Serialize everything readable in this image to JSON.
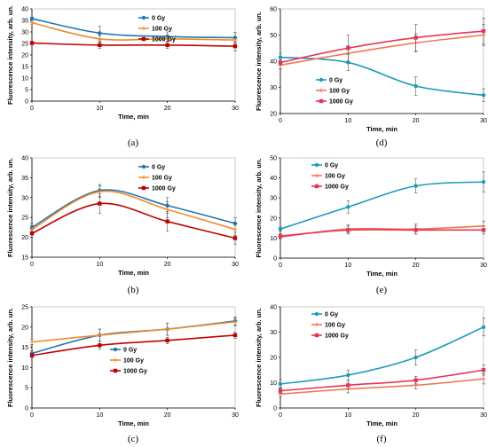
{
  "chart_data": [
    {
      "type": "line",
      "panel_label": "(a)",
      "x": [
        0,
        10,
        20,
        30
      ],
      "xlim": [
        0,
        30
      ],
      "xticks": [
        0,
        10,
        20,
        30
      ],
      "ylim": [
        0,
        40
      ],
      "yticks": [
        0,
        5,
        10,
        15,
        20,
        25,
        30,
        35,
        40
      ],
      "xlabel": "Time, min",
      "ylabel": "Fluorescence intensity, arb. un.",
      "legend_position": "top-right",
      "grid": false,
      "series": [
        {
          "name": "0 Gy",
          "color": "#1f77b4",
          "values": [
            35.8,
            29.5,
            28.0,
            27.5
          ],
          "errors": [
            0.6,
            3.0,
            2.0,
            2.3
          ]
        },
        {
          "name": "100 Gy",
          "color": "#f28c28",
          "values": [
            34.0,
            27.0,
            27.0,
            26.5
          ],
          "errors": [
            0.6,
            1.5,
            1.2,
            1.2
          ]
        },
        {
          "name": "1000 Gy",
          "color": "#c00000",
          "values": [
            25.2,
            24.3,
            24.3,
            23.8
          ],
          "errors": [
            0.4,
            1.5,
            1.5,
            2.0
          ]
        }
      ]
    },
    {
      "type": "line",
      "panel_label": "(d)",
      "x": [
        0,
        10,
        20,
        30
      ],
      "xlim": [
        0,
        30
      ],
      "xticks": [
        0,
        10,
        20,
        30
      ],
      "ylim": [
        20,
        60
      ],
      "yticks": [
        20,
        30,
        40,
        50,
        60
      ],
      "xlabel": "Time, min",
      "ylabel": "Fluorescence intensity, arb. un.",
      "legend_position": "bottom-left",
      "grid": false,
      "series": [
        {
          "name": "0 Gy",
          "color": "#1a9bb8",
          "values": [
            41.5,
            39.5,
            30.5,
            27.0
          ],
          "errors": [
            1.5,
            3.0,
            3.5,
            2.5
          ]
        },
        {
          "name": "100 Gy",
          "color": "#f07850",
          "values": [
            38.5,
            43.0,
            47.0,
            50.0
          ],
          "errors": [
            1.5,
            3.0,
            3.5,
            4.0
          ]
        },
        {
          "name": "1000 Gy",
          "color": "#e8325a",
          "values": [
            39.5,
            45.0,
            49.0,
            51.5
          ],
          "errors": [
            1.0,
            5.0,
            5.0,
            5.0
          ]
        }
      ]
    },
    {
      "type": "line",
      "panel_label": "(b)",
      "x": [
        0,
        10,
        20,
        30
      ],
      "xlim": [
        0,
        30
      ],
      "xticks": [
        0,
        10,
        20,
        30
      ],
      "ylim": [
        15,
        40
      ],
      "yticks": [
        15,
        20,
        25,
        30,
        35,
        40
      ],
      "xlabel": "Time, min",
      "ylabel": "Fluorescence intensity, arb. un.",
      "legend_position": "top-right",
      "grid": false,
      "series": [
        {
          "name": "0 Gy",
          "color": "#1f77b4",
          "values": [
            22.5,
            31.8,
            28.0,
            23.5
          ],
          "errors": [
            1.0,
            1.5,
            2.0,
            1.5
          ]
        },
        {
          "name": "100 Gy",
          "color": "#f28c28",
          "values": [
            22.0,
            31.5,
            27.0,
            22.0
          ],
          "errors": [
            1.0,
            1.5,
            2.0,
            1.5
          ]
        },
        {
          "name": "1000 Gy",
          "color": "#c00000",
          "values": [
            21.0,
            28.5,
            24.0,
            19.8
          ],
          "errors": [
            1.0,
            2.5,
            2.5,
            1.5
          ]
        }
      ]
    },
    {
      "type": "line",
      "panel_label": "(e)",
      "x": [
        0,
        10,
        20,
        30
      ],
      "xlim": [
        0,
        30
      ],
      "xticks": [
        0,
        10,
        20,
        30
      ],
      "ylim": [
        0,
        50
      ],
      "yticks": [
        0,
        10,
        20,
        30,
        40,
        50
      ],
      "xlabel": "Time, min",
      "ylabel": "Fluorescence intensity, arb. un.",
      "legend_position": "top-left",
      "grid": false,
      "series": [
        {
          "name": "0 Gy",
          "color": "#1a9bb8",
          "values": [
            14.5,
            25.5,
            36.0,
            38.0
          ],
          "errors": [
            1.0,
            3.0,
            3.5,
            5.0
          ]
        },
        {
          "name": "100 Gy",
          "color": "#f07850",
          "values": [
            10.5,
            14.5,
            14.5,
            16.0
          ],
          "errors": [
            1.0,
            2.0,
            2.5,
            2.5
          ]
        },
        {
          "name": "1000 Gy",
          "color": "#e8325a",
          "values": [
            11.0,
            14.0,
            14.0,
            14.0
          ],
          "errors": [
            1.0,
            2.0,
            2.0,
            2.0
          ]
        }
      ]
    },
    {
      "type": "line",
      "panel_label": "(c)",
      "x": [
        0,
        10,
        20,
        30
      ],
      "xlim": [
        0,
        30
      ],
      "xticks": [
        0,
        10,
        20,
        30
      ],
      "ylim": [
        0,
        25
      ],
      "yticks": [
        0,
        5,
        10,
        15,
        20,
        25
      ],
      "xlabel": "Time, min",
      "ylabel": "Fluorescence intensity, arb. un.",
      "legend_position": "bottom-right",
      "grid": false,
      "series": [
        {
          "name": "0 Gy",
          "color": "#1f77b4",
          "values": [
            13.5,
            18.0,
            19.5,
            21.5
          ],
          "errors": [
            0.6,
            1.5,
            1.5,
            1.0
          ]
        },
        {
          "name": "100 Gy",
          "color": "#f28c28",
          "values": [
            16.3,
            18.0,
            19.5,
            21.3
          ],
          "errors": [
            0.6,
            1.5,
            1.5,
            1.0
          ]
        },
        {
          "name": "1000 Gy",
          "color": "#c00000",
          "values": [
            13.0,
            15.5,
            16.7,
            18.0
          ],
          "errors": [
            0.5,
            1.0,
            0.8,
            0.8
          ]
        }
      ]
    },
    {
      "type": "line",
      "panel_label": "(f)",
      "x": [
        0,
        10,
        20,
        30
      ],
      "xlim": [
        0,
        30
      ],
      "xticks": [
        0,
        10,
        20,
        30
      ],
      "ylim": [
        0,
        40
      ],
      "yticks": [
        0,
        10,
        20,
        30,
        40
      ],
      "xlabel": "Time, min",
      "ylabel": "Fluorescence intensity, arb. un.",
      "legend_position": "top-left",
      "grid": false,
      "series": [
        {
          "name": "0 Gy",
          "color": "#1a9bb8",
          "values": [
            9.5,
            13.0,
            20.0,
            32.0
          ],
          "errors": [
            1.5,
            2.0,
            3.0,
            3.5
          ]
        },
        {
          "name": "100 Gy",
          "color": "#f07850",
          "values": [
            5.5,
            7.5,
            9.0,
            11.5
          ],
          "errors": [
            1.0,
            1.5,
            1.5,
            2.0
          ]
        },
        {
          "name": "1000 Gy",
          "color": "#e8325a",
          "values": [
            6.8,
            9.0,
            11.0,
            15.0
          ],
          "errors": [
            1.0,
            1.5,
            1.5,
            2.0
          ]
        }
      ]
    }
  ]
}
